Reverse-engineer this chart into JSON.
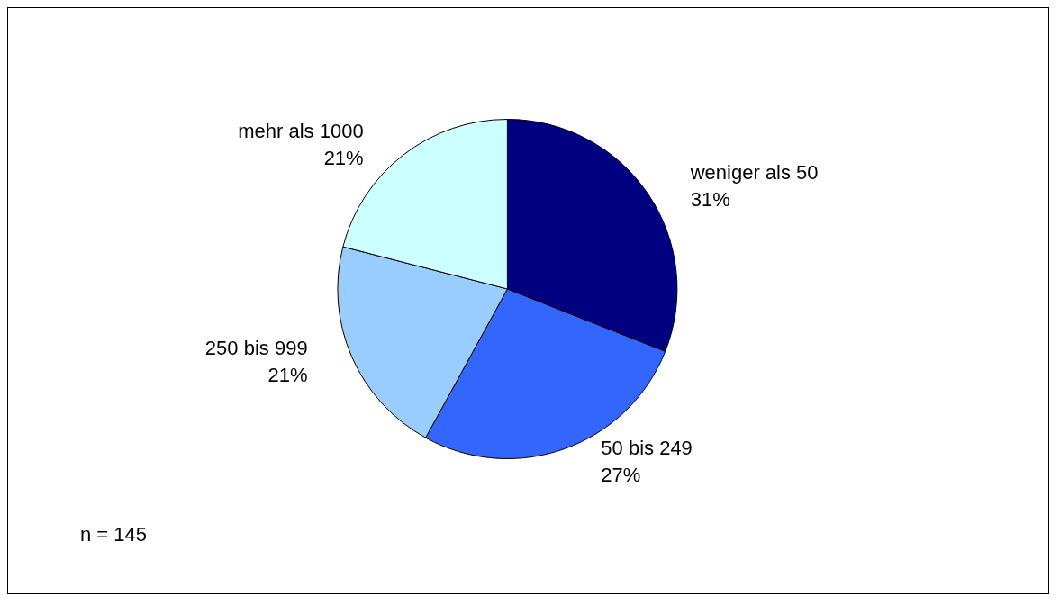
{
  "chart_data": {
    "type": "pie",
    "categories": [
      "weniger als 50",
      "50 bis 249",
      "250 bis 999",
      "mehr als 1000"
    ],
    "values": [
      31,
      27,
      21,
      21
    ],
    "value_labels": [
      "31%",
      "27%",
      "21%",
      "21%"
    ],
    "colors": [
      "#000080",
      "#3366ff",
      "#99ccff",
      "#ccffff"
    ],
    "legend": false,
    "annotations": [
      "n = 145"
    ]
  }
}
